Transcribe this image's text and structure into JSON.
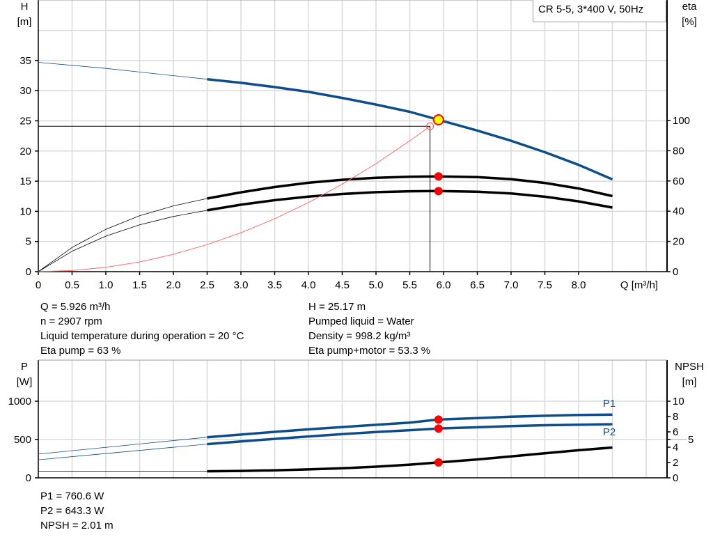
{
  "chart_data": [
    {
      "type": "line",
      "title": "CR 5-5, 3*400 V, 50Hz",
      "xlabel": "Q [m³/h]",
      "ylabel": [
        "H",
        "[m]"
      ],
      "y2label": [
        "eta",
        "[%]"
      ],
      "xlim": [
        0,
        9.5
      ],
      "ylim": [
        0,
        45
      ],
      "y2lim": [
        0,
        207
      ],
      "xticks": [
        "0",
        "0.5",
        "1.0",
        "1.5",
        "2.0",
        "2.5",
        "3.0",
        "3.5",
        "4.0",
        "4.5",
        "5.0",
        "5.5",
        "6.0",
        "6.5",
        "7.0",
        "7.5",
        "8.0"
      ],
      "yticks": [
        0,
        5,
        10,
        15,
        20,
        25,
        30,
        35
      ],
      "y2ticks": [
        0,
        20,
        40,
        60,
        80,
        100
      ],
      "grid": true,
      "series": [
        {
          "key": "H",
          "axis": "left",
          "color": "#0e4d8c",
          "thin": {
            "x": [
              0,
              0.5,
              1,
              1.5,
              2,
              2.5
            ],
            "y": [
              34.7,
              34.2,
              33.7,
              33.1,
              32.5,
              31.9
            ]
          },
          "thick": {
            "x": [
              2.5,
              3,
              3.5,
              4,
              4.5,
              5,
              5.5,
              5.926,
              6.5,
              7,
              7.5,
              8,
              8.5
            ],
            "y": [
              31.9,
              31.3,
              30.6,
              29.8,
              28.8,
              27.7,
              26.5,
              25.17,
              23.4,
              21.7,
              19.8,
              17.7,
              15.3
            ]
          }
        },
        {
          "key": "eta_pump",
          "axis": "right",
          "color": "#000000",
          "thin": {
            "x": [
              0,
              0.5,
              1,
              1.5,
              2,
              2.5
            ],
            "y": [
              0,
              16,
              28,
              37,
              43.5,
              48.4
            ]
          },
          "thick": {
            "x": [
              2.5,
              3,
              3.5,
              4,
              4.5,
              5,
              5.5,
              5.926,
              6.5,
              7,
              7.5,
              8,
              8.5
            ],
            "y": [
              48.4,
              52.5,
              56,
              58.8,
              60.8,
              62.1,
              62.8,
              63,
              62.6,
              61.2,
              58.7,
              55,
              50
            ]
          }
        },
        {
          "key": "eta_pump_motor",
          "axis": "right",
          "color": "#000000",
          "thin": {
            "x": [
              0,
              0.5,
              1,
              1.5,
              2,
              2.5
            ],
            "y": [
              0,
              13.5,
              23.5,
              31,
              36.5,
              40.6
            ]
          },
          "thick": {
            "x": [
              2.5,
              3,
              3.5,
              4,
              4.5,
              5,
              5.5,
              5.926,
              6.5,
              7,
              7.5,
              8,
              8.5
            ],
            "y": [
              40.6,
              44.3,
              47.3,
              49.7,
              51.4,
              52.6,
              53.2,
              53.3,
              52.9,
              51.7,
              49.6,
              46.5,
              42.4
            ]
          }
        },
        {
          "key": "system",
          "axis": "left",
          "color": "#ff6b6b",
          "thin": {
            "x": [
              0,
              0.5,
              1,
              1.5,
              2,
              2.5,
              3,
              3.5,
              4,
              4.5,
              5,
              5.5,
              5.8
            ],
            "y": [
              0,
              0.18,
              0.72,
              1.61,
              2.87,
              4.48,
              6.45,
              8.77,
              11.46,
              14.5,
              17.9,
              21.7,
              24.1
            ]
          }
        }
      ],
      "duty_point": {
        "Q": 5.926,
        "H": 25.17,
        "eta_pump": 63,
        "eta_pump_motor": 53.3
      },
      "required_point": {
        "Q": 5.8,
        "H": 24.1
      }
    },
    {
      "type": "line",
      "ylabel": [
        "P",
        "[W]"
      ],
      "y2label": [
        "NPSH",
        "[m]"
      ],
      "xlim": [
        0,
        9.5
      ],
      "ylim": [
        0,
        1535
      ],
      "y2lim": [
        0,
        15.35
      ],
      "yticks": [
        0,
        500,
        1000
      ],
      "y2ticks": [
        0,
        2,
        4,
        5,
        6,
        8,
        10
      ],
      "grid": true,
      "series": [
        {
          "key": "P1",
          "name": "P1",
          "axis": "left",
          "color": "#0e4d8c",
          "thin": {
            "x": [
              0,
              2.5
            ],
            "y": [
              310,
              530
            ]
          },
          "thick": {
            "x": [
              2.5,
              3,
              3.5,
              4,
              4.5,
              5,
              5.5,
              5.926,
              6.5,
              7,
              7.5,
              8,
              8.5
            ],
            "y": [
              530,
              565,
              600,
              633,
              663,
              692,
              720,
              760.6,
              780,
              797,
              810,
              820,
              825
            ]
          }
        },
        {
          "key": "P2",
          "name": "P2",
          "axis": "left",
          "color": "#0e4d8c",
          "thin": {
            "x": [
              0,
              2.5
            ],
            "y": [
              235,
              440
            ]
          },
          "thick": {
            "x": [
              2.5,
              3,
              3.5,
              4,
              4.5,
              5,
              5.5,
              5.926,
              6.5,
              7,
              7.5,
              8,
              8.5
            ],
            "y": [
              440,
              475,
              508,
              540,
              570,
              598,
              622,
              643.3,
              660,
              675,
              686,
              694,
              700
            ]
          }
        },
        {
          "key": "NPSH",
          "axis": "right",
          "color": "#000000",
          "thin": {
            "x": [
              0,
              2.5
            ],
            "y": [
              0.85,
              0.85
            ]
          },
          "thick": {
            "x": [
              2.5,
              3,
              3.5,
              4,
              4.5,
              5,
              5.5,
              5.926,
              6.5,
              7,
              7.5,
              8,
              8.5
            ],
            "y": [
              0.85,
              0.9,
              0.98,
              1.1,
              1.25,
              1.45,
              1.72,
              2.01,
              2.4,
              2.8,
              3.2,
              3.6,
              3.95
            ]
          }
        }
      ],
      "duty_point": {
        "Q": 5.926,
        "P1": 760.6,
        "P2": 643.3,
        "NPSH": 2.01
      }
    }
  ],
  "info": {
    "left": [
      "Q = 5.926 m³/h",
      "n = 2907 rpm",
      "Liquid temperature during operation = 20 °C",
      "Eta pump = 63 %"
    ],
    "right": [
      "H = 25.17 m",
      "Pumped liquid = Water",
      "Density = 998.2 kg/m³",
      "Eta pump+motor = 53.3 %"
    ],
    "bottom": [
      "P1 = 760.6 W",
      "P2 = 643.3 W",
      "NPSH = 2.01 m"
    ]
  }
}
